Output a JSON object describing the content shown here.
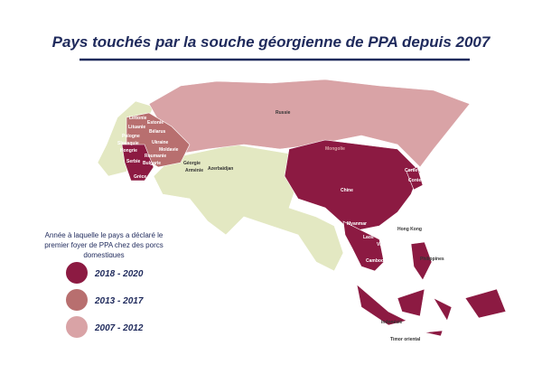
{
  "title": "Pays touchés par la souche géorgienne de PPA depuis 2007",
  "legend": {
    "title": "Année à laquelle le pays a déclaré le premier foyer de PPA chez des porcs domestiques",
    "items": [
      {
        "label": "2018 - 2020",
        "color": "#8c1a42"
      },
      {
        "label": "2013 - 2017",
        "color": "#b86f6f"
      },
      {
        "label": "2007 - 2012",
        "color": "#d9a3a6"
      }
    ]
  },
  "countries": [
    "Russie",
    "Lettonie",
    "Estonie",
    "Lituanie",
    "Bélarus",
    "Pologne",
    "Slovaquie",
    "Hongrie",
    "Ukraine",
    "Moldavie",
    "Roumanie",
    "Serbie",
    "Bulgarie",
    "Grèce",
    "Géorgie",
    "Arménie",
    "Azerbaïdjan",
    "Mongolie",
    "Chine",
    "Corée du Nord",
    "Corée du Sud",
    "Hong Kong",
    "Myanmar",
    "Laos",
    "Vietnam",
    "Cambodge",
    "Philippines",
    "Indonésie",
    "Timor oriental"
  ]
}
